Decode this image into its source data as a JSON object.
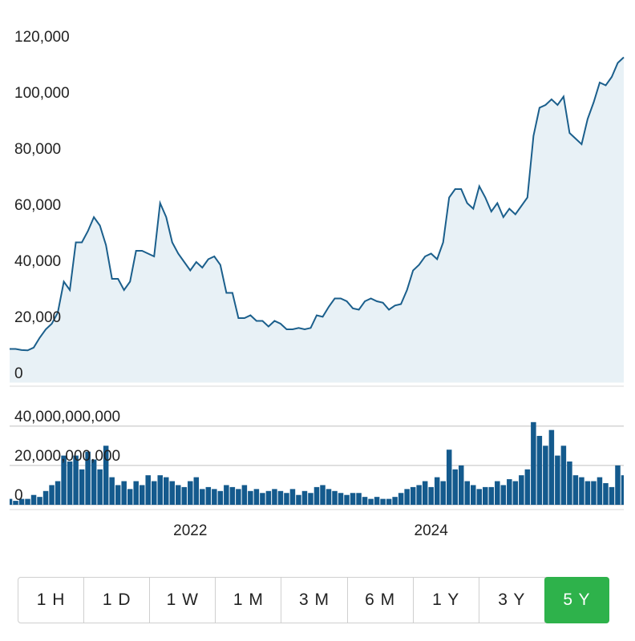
{
  "chart_data": [
    {
      "type": "area",
      "color": "#1b5f8c",
      "fill": "#e8f1f6",
      "grid": false,
      "x": [
        2020.5,
        2020.55,
        2020.6,
        2020.65,
        2020.7,
        2020.75,
        2020.8,
        2020.85,
        2020.9,
        2020.95,
        2021.0,
        2021.05,
        2021.1,
        2021.15,
        2021.2,
        2021.25,
        2021.3,
        2021.35,
        2021.4,
        2021.45,
        2021.5,
        2021.55,
        2021.6,
        2021.65,
        2021.7,
        2021.75,
        2021.8,
        2021.85,
        2021.9,
        2021.95,
        2022.0,
        2022.05,
        2022.1,
        2022.15,
        2022.2,
        2022.25,
        2022.3,
        2022.35,
        2022.4,
        2022.45,
        2022.5,
        2022.55,
        2022.6,
        2022.65,
        2022.7,
        2022.75,
        2022.8,
        2022.85,
        2022.9,
        2022.95,
        2023.0,
        2023.05,
        2023.1,
        2023.15,
        2023.2,
        2023.25,
        2023.3,
        2023.35,
        2023.4,
        2023.45,
        2023.5,
        2023.55,
        2023.6,
        2023.65,
        2023.7,
        2023.75,
        2023.8,
        2023.85,
        2023.9,
        2023.95,
        2024.0,
        2024.05,
        2024.1,
        2024.15,
        2024.2,
        2024.25,
        2024.3,
        2024.35,
        2024.4,
        2024.45,
        2024.5,
        2024.55,
        2024.6,
        2024.65,
        2024.7,
        2024.75,
        2024.8,
        2024.85,
        2024.9,
        2024.95,
        2025.0,
        2025.05,
        2025.1,
        2025.15,
        2025.2,
        2025.25,
        2025.3,
        2025.35,
        2025.4,
        2025.45,
        2025.5,
        2025.55,
        2025.6
      ],
      "values": [
        9000,
        9000,
        8600,
        8500,
        9500,
        13000,
        16000,
        18000,
        22000,
        33000,
        30000,
        47000,
        47000,
        51000,
        56000,
        53000,
        46000,
        34000,
        34000,
        30000,
        33000,
        44000,
        44000,
        43000,
        42000,
        61000,
        56000,
        47000,
        43000,
        40000,
        37000,
        40000,
        38000,
        41000,
        42000,
        39000,
        29000,
        29000,
        20000,
        20000,
        21000,
        19000,
        19000,
        17000,
        19000,
        18000,
        16000,
        16000,
        16500,
        16000,
        16500,
        21000,
        20500,
        24000,
        27000,
        27000,
        26000,
        23500,
        23000,
        26000,
        27000,
        26000,
        25500,
        23000,
        24500,
        25000,
        30000,
        37000,
        39000,
        42000,
        43000,
        41000,
        47000,
        63000,
        66000,
        66000,
        61000,
        59000,
        67000,
        63000,
        58000,
        61000,
        56000,
        59000,
        57000,
        60000,
        63000,
        85000,
        95000,
        96000,
        98000,
        96000,
        99000,
        86000,
        84000,
        82000,
        91000,
        97000,
        104000,
        103000,
        106000,
        111000,
        113000
      ],
      "xlim": [
        2020.5,
        2025.6
      ],
      "ylim": [
        -3000,
        122000
      ],
      "yticks": [
        0,
        {
          "value": 20000,
          "label": "20,000"
        },
        {
          "value": 40000,
          "label": "40,000"
        },
        {
          "value": 60000,
          "label": "60,000"
        },
        {
          "value": 80000,
          "label": "80,000"
        },
        {
          "value": 100000,
          "label": "100,000"
        },
        {
          "value": 120000,
          "label": "120,000"
        }
      ]
    },
    {
      "type": "bar",
      "color": "#145a8d",
      "grid": true,
      "x": [
        2020.5,
        2020.55,
        2020.6,
        2020.65,
        2020.7,
        2020.75,
        2020.8,
        2020.85,
        2020.9,
        2020.95,
        2021.0,
        2021.05,
        2021.1,
        2021.15,
        2021.2,
        2021.25,
        2021.3,
        2021.35,
        2021.4,
        2021.45,
        2021.5,
        2021.55,
        2021.6,
        2021.65,
        2021.7,
        2021.75,
        2021.8,
        2021.85,
        2021.9,
        2021.95,
        2022.0,
        2022.05,
        2022.1,
        2022.15,
        2022.2,
        2022.25,
        2022.3,
        2022.35,
        2022.4,
        2022.45,
        2022.5,
        2022.55,
        2022.6,
        2022.65,
        2022.7,
        2022.75,
        2022.8,
        2022.85,
        2022.9,
        2022.95,
        2023.0,
        2023.05,
        2023.1,
        2023.15,
        2023.2,
        2023.25,
        2023.3,
        2023.35,
        2023.4,
        2023.45,
        2023.5,
        2023.55,
        2023.6,
        2023.65,
        2023.7,
        2023.75,
        2023.8,
        2023.85,
        2023.9,
        2023.95,
        2024.0,
        2024.05,
        2024.1,
        2024.15,
        2024.2,
        2024.25,
        2024.3,
        2024.35,
        2024.4,
        2024.45,
        2024.5,
        2024.55,
        2024.6,
        2024.65,
        2024.7,
        2024.75,
        2024.8,
        2024.85,
        2024.9,
        2024.95,
        2025.0,
        2025.05,
        2025.1,
        2025.15,
        2025.2,
        2025.25,
        2025.3,
        2025.35,
        2025.4,
        2025.45,
        2025.5,
        2025.55,
        2025.6
      ],
      "values": [
        3000000000,
        2000000000,
        3000000000,
        3000000000,
        5000000000,
        4000000000,
        7000000000,
        10000000000,
        12000000000,
        25000000000,
        22000000000,
        25000000000,
        18000000000,
        27000000000,
        23000000000,
        18000000000,
        30000000000,
        14000000000,
        10000000000,
        12000000000,
        8000000000,
        12000000000,
        10000000000,
        15000000000,
        12000000000,
        15000000000,
        14000000000,
        12000000000,
        10000000000,
        9000000000,
        12000000000,
        14000000000,
        8000000000,
        9000000000,
        8000000000,
        7000000000,
        10000000000,
        9000000000,
        8000000000,
        10000000000,
        7000000000,
        8000000000,
        6000000000,
        7000000000,
        8000000000,
        7000000000,
        6000000000,
        8000000000,
        5000000000,
        7000000000,
        6000000000,
        9000000000,
        10000000000,
        8000000000,
        7000000000,
        6000000000,
        5000000000,
        6000000000,
        6000000000,
        4000000000,
        3000000000,
        4000000000,
        3000000000,
        3000000000,
        4000000000,
        6000000000,
        8000000000,
        9000000000,
        10000000000,
        12000000000,
        9000000000,
        14000000000,
        12000000000,
        28000000000,
        18000000000,
        20000000000,
        12000000000,
        10000000000,
        8000000000,
        9000000000,
        9000000000,
        12000000000,
        10000000000,
        13000000000,
        12000000000,
        15000000000,
        18000000000,
        42000000000,
        35000000000,
        30000000000,
        38000000000,
        25000000000,
        30000000000,
        22000000000,
        15000000000,
        14000000000,
        12000000000,
        12000000000,
        14000000000,
        11000000000,
        9000000000,
        20000000000,
        15000000000
      ],
      "xlim": [
        2020.5,
        2025.6
      ],
      "ylim": [
        0,
        46000000000
      ],
      "xticks": [
        2022,
        2024
      ],
      "yticks": [
        0,
        {
          "value": 20000000000,
          "label": "20,000,000,000"
        },
        {
          "value": 40000000000,
          "label": "40,000,000,000"
        }
      ]
    }
  ],
  "range_buttons": [
    "1 H",
    "1 D",
    "1 W",
    "1 M",
    "3 M",
    "6 M",
    "1 Y",
    "3 Y",
    "5 Y"
  ],
  "selected_button": 8
}
